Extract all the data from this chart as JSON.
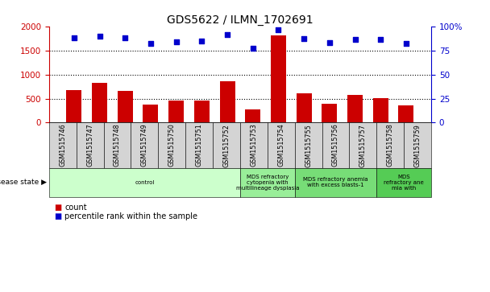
{
  "title": "GDS5622 / ILMN_1702691",
  "samples": [
    "GSM1515746",
    "GSM1515747",
    "GSM1515748",
    "GSM1515749",
    "GSM1515750",
    "GSM1515751",
    "GSM1515752",
    "GSM1515753",
    "GSM1515754",
    "GSM1515755",
    "GSM1515756",
    "GSM1515757",
    "GSM1515758",
    "GSM1515759"
  ],
  "counts": [
    680,
    830,
    660,
    370,
    455,
    465,
    860,
    270,
    1810,
    615,
    400,
    570,
    510,
    360
  ],
  "percentiles": [
    88,
    90,
    88,
    82,
    84,
    85,
    91,
    77,
    96,
    87,
    83,
    86,
    86,
    82
  ],
  "bar_color": "#cc0000",
  "dot_color": "#0000cc",
  "ylim_left": [
    0,
    2000
  ],
  "ylim_right": [
    0,
    100
  ],
  "yticks_left": [
    0,
    500,
    1000,
    1500,
    2000
  ],
  "yticks_right": [
    0,
    25,
    50,
    75,
    100
  ],
  "disease_groups": [
    {
      "label": "control",
      "start": 0,
      "end": 7,
      "color": "#ccffcc"
    },
    {
      "label": "MDS refractory\ncytopenia with\nmultilineage dysplasia",
      "start": 7,
      "end": 9,
      "color": "#99ee99"
    },
    {
      "label": "MDS refractory anemia\nwith excess blasts-1",
      "start": 9,
      "end": 12,
      "color": "#77dd77"
    },
    {
      "label": "MDS\nrefractory ane\nmia with",
      "start": 12,
      "end": 14,
      "color": "#55cc55"
    }
  ],
  "legend_count_label": "count",
  "legend_pct_label": "percentile rank within the sample",
  "disease_label": "disease state",
  "background_color": "#ffffff"
}
